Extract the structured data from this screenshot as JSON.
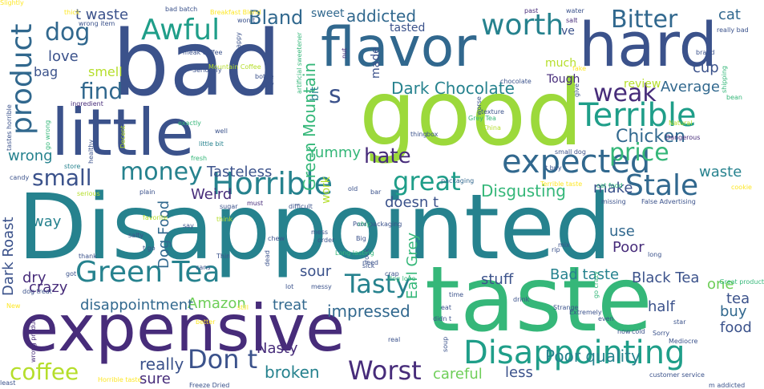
{
  "palette": [
    "#440154",
    "#472c7a",
    "#3b528b",
    "#31688e",
    "#26828e",
    "#1f9e89",
    "#35b779",
    "#6ece58",
    "#b5de2b",
    "#fde725"
  ],
  "words": [
    {
      "text": "Disappointed",
      "color": "#26828e"
    },
    {
      "text": "taste",
      "color": "#35b779"
    },
    {
      "text": "bad",
      "color": "#3b528b"
    },
    {
      "text": "good",
      "color": "#9cd93b"
    },
    {
      "text": "expensive",
      "color": "#472c7a"
    },
    {
      "text": "little",
      "color": "#3b528b"
    },
    {
      "text": "hard",
      "color": "#3b528b"
    },
    {
      "text": "flavor",
      "color": "#31688e"
    },
    {
      "text": "Disappointing",
      "color": "#1f9e89"
    },
    {
      "text": "Terrible",
      "color": "#1f9e89"
    },
    {
      "text": "expected",
      "color": "#31688e"
    },
    {
      "text": "Horrible",
      "color": "#26828e"
    },
    {
      "text": "Green Tea",
      "color": "#26828e"
    },
    {
      "text": "product",
      "color": "#31688e"
    },
    {
      "text": "Awful",
      "color": "#1f9e89"
    },
    {
      "text": "worth",
      "color": "#26828e"
    },
    {
      "text": "Stale",
      "color": "#31688e"
    },
    {
      "text": "Worst",
      "color": "#472c7a"
    },
    {
      "text": "Tasty",
      "color": "#26828e"
    },
    {
      "text": "Don t",
      "color": "#3b528b"
    },
    {
      "text": "great",
      "color": "#1f9e89"
    },
    {
      "text": "dog",
      "color": "#31688e"
    },
    {
      "text": "Bitter",
      "color": "#31688e"
    },
    {
      "text": "money",
      "color": "#26828e"
    },
    {
      "text": "weak",
      "color": "#472c7a"
    },
    {
      "text": "price",
      "color": "#35b779"
    },
    {
      "text": "small",
      "color": "#3b528b"
    },
    {
      "text": "find",
      "color": "#31688e"
    },
    {
      "text": "s",
      "color": "#3b528b"
    },
    {
      "text": "coffee",
      "color": "#b5de2b"
    },
    {
      "text": "hate",
      "color": "#472c7a"
    },
    {
      "text": "Bland",
      "color": "#31688e"
    },
    {
      "text": "Chicken",
      "color": "#31688e"
    },
    {
      "text": "Dark Chocolate",
      "color": "#26828e"
    },
    {
      "text": "Green Mountain",
      "color": "#35b779"
    },
    {
      "text": "Disgusting",
      "color": "#35b779"
    },
    {
      "text": "Poor quality",
      "color": "#26828e"
    },
    {
      "text": "broken",
      "color": "#26828e"
    },
    {
      "text": "careful",
      "color": "#6ece58"
    },
    {
      "text": "really",
      "color": "#3b528b"
    },
    {
      "text": "Nasty",
      "color": "#472c7a"
    },
    {
      "text": "sure",
      "color": "#472c7a"
    },
    {
      "text": "Earl Grey",
      "color": "#35b779"
    },
    {
      "text": "impressed",
      "color": "#31688e"
    },
    {
      "text": "Bad taste",
      "color": "#26828e"
    },
    {
      "text": "Black Tea",
      "color": "#3b528b"
    },
    {
      "text": "addicted",
      "color": "#31688e"
    },
    {
      "text": "cat",
      "color": "#31688e"
    },
    {
      "text": "cup",
      "color": "#3b528b"
    },
    {
      "text": "waste",
      "color": "#26828e"
    },
    {
      "text": "Average",
      "color": "#31688e"
    },
    {
      "text": "Tasteless",
      "color": "#3b528b"
    },
    {
      "text": "Weird",
      "color": "#472c7a"
    },
    {
      "text": "Yummy",
      "color": "#35b779"
    },
    {
      "text": "make",
      "color": "#3b528b"
    },
    {
      "text": "doesn t",
      "color": "#3b528b"
    },
    {
      "text": "stuff",
      "color": "#3b528b"
    },
    {
      "text": "one",
      "color": "#6ece58"
    },
    {
      "text": "tea",
      "color": "#3b528b"
    },
    {
      "text": "buy",
      "color": "#31688e"
    },
    {
      "text": "half",
      "color": "#3b528b"
    },
    {
      "text": "food",
      "color": "#3b528b"
    },
    {
      "text": "Poor",
      "color": "#472c7a"
    },
    {
      "text": "use",
      "color": "#31688e"
    },
    {
      "text": "less",
      "color": "#3b528b"
    },
    {
      "text": "treat",
      "color": "#31688e"
    },
    {
      "text": "sour",
      "color": "#3b528b"
    },
    {
      "text": "crazy",
      "color": "#472c7a"
    },
    {
      "text": "dry",
      "color": "#472c7a"
    },
    {
      "text": "Amazon",
      "color": "#6ece58"
    },
    {
      "text": "disappointment",
      "color": "#31688e"
    },
    {
      "text": "way",
      "color": "#26828e"
    },
    {
      "text": "Dog Food",
      "color": "#31688e"
    },
    {
      "text": "Dark Roast",
      "color": "#3b528b"
    },
    {
      "text": "wrong",
      "color": "#26828e"
    },
    {
      "text": "love",
      "color": "#3b528b"
    },
    {
      "text": "bag",
      "color": "#3b528b"
    },
    {
      "text": "smell",
      "color": "#b5de2b"
    },
    {
      "text": "t waste",
      "color": "#3b528b"
    },
    {
      "text": "tasted",
      "color": "#3b528b"
    },
    {
      "text": "made",
      "color": "#3b528b"
    },
    {
      "text": "ve",
      "color": "#3b528b"
    },
    {
      "text": "much",
      "color": "#b5de2b"
    },
    {
      "text": "Tough",
      "color": "#472c7a"
    },
    {
      "text": "review",
      "color": "#b5de2b"
    },
    {
      "text": "bit",
      "color": "#26828e"
    },
    {
      "text": "work",
      "color": "#b5de2b"
    },
    {
      "text": "sweet",
      "color": "#31688e"
    },
    {
      "text": "Mountain Coffee",
      "color": "#b5de2b"
    },
    {
      "text": "artificial sweetener",
      "color": "#35b779"
    },
    {
      "text": "Seriously",
      "color": "#3b528b"
    },
    {
      "text": "chocolate",
      "color": "#3b528b"
    },
    {
      "text": "worse",
      "color": "#3b528b"
    },
    {
      "text": "Grey Tea",
      "color": "#35b779"
    },
    {
      "text": "texture",
      "color": "#3b528b"
    },
    {
      "text": "China",
      "color": "#b5de2b"
    },
    {
      "text": "thing",
      "color": "#3b528b"
    },
    {
      "text": "box",
      "color": "#3b528b"
    },
    {
      "text": "packaging",
      "color": "#31688e"
    },
    {
      "text": "Terrible taste",
      "color": "#fde725"
    },
    {
      "text": "cat food",
      "color": "#35b779"
    },
    {
      "text": "small dog",
      "color": "#3b528b"
    },
    {
      "text": "missing",
      "color": "#3b528b"
    },
    {
      "text": "False Advertising",
      "color": "#3b528b"
    },
    {
      "text": "Dangerous",
      "color": "#472c7a"
    },
    {
      "text": "Natural",
      "color": "#b5de2b"
    },
    {
      "text": "cookie",
      "color": "#fde725"
    },
    {
      "text": "bean",
      "color": "#35b779"
    },
    {
      "text": "shipping",
      "color": "#35b779"
    },
    {
      "text": "brand",
      "color": "#3b528b"
    },
    {
      "text": "really bad",
      "color": "#3b528b"
    },
    {
      "text": "water",
      "color": "#3b528b"
    },
    {
      "text": "salt",
      "color": "#472c7a"
    },
    {
      "text": "past",
      "color": "#472c7a"
    },
    {
      "text": "Breakfast Blend",
      "color": "#fde725"
    },
    {
      "text": "bad batch",
      "color": "#3b528b"
    },
    {
      "text": "thick",
      "color": "#fde725"
    },
    {
      "text": "wrong item",
      "color": "#3b528b"
    },
    {
      "text": "won t",
      "color": "#3b528b"
    },
    {
      "text": "meak coffee",
      "color": "#3b528b"
    },
    {
      "text": "happy",
      "color": "#3b528b"
    },
    {
      "text": "ingredient",
      "color": "#472c7a"
    },
    {
      "text": "exactly",
      "color": "#35b779"
    },
    {
      "text": "healthy",
      "color": "#3b528b"
    },
    {
      "text": "Decent",
      "color": "#b5de2b"
    },
    {
      "text": "tastes horrible",
      "color": "#3b528b"
    },
    {
      "text": "go wrong",
      "color": "#35b779"
    },
    {
      "text": "little bit",
      "color": "#26828e"
    },
    {
      "text": "fresh",
      "color": "#35b779"
    },
    {
      "text": "candy",
      "color": "#3b528b"
    },
    {
      "text": "store",
      "color": "#26828e"
    },
    {
      "text": "serious",
      "color": "#b5de2b"
    },
    {
      "text": "plain",
      "color": "#3b528b"
    },
    {
      "text": "sugar",
      "color": "#3b528b"
    },
    {
      "text": "think",
      "color": "#b5de2b"
    },
    {
      "text": "must",
      "color": "#472c7a"
    },
    {
      "text": "difficult",
      "color": "#3b528b"
    },
    {
      "text": "favorite",
      "color": "#b5de2b"
    },
    {
      "text": "say",
      "color": "#3b528b"
    },
    {
      "text": "Poor packaging",
      "color": "#3b528b"
    },
    {
      "text": "Big",
      "color": "#3b528b"
    },
    {
      "text": "chip",
      "color": "#35b779"
    },
    {
      "text": "mess",
      "color": "#3b528b"
    },
    {
      "text": "salty",
      "color": "#3b528b"
    },
    {
      "text": "t go",
      "color": "#3b528b"
    },
    {
      "text": "chew",
      "color": "#3b528b"
    },
    {
      "text": "order",
      "color": "#3b528b"
    },
    {
      "text": "rock",
      "color": "#3b528b"
    },
    {
      "text": "need",
      "color": "#3b528b"
    },
    {
      "text": "Long lasting",
      "color": "#35b779"
    },
    {
      "text": "sick",
      "color": "#3b528b"
    },
    {
      "text": "rip",
      "color": "#3b528b"
    },
    {
      "text": "mix",
      "color": "#3b528b"
    },
    {
      "text": "go crazy",
      "color": "#35b779"
    },
    {
      "text": "long",
      "color": "#3b528b"
    },
    {
      "text": "Great product",
      "color": "#35b779"
    },
    {
      "text": "thank",
      "color": "#3b528b"
    },
    {
      "text": "got",
      "color": "#3b528b"
    },
    {
      "text": "Thin",
      "color": "#3b528b"
    },
    {
      "text": "cans",
      "color": "#3b528b"
    },
    {
      "text": "dead",
      "color": "#3b528b"
    },
    {
      "text": "crap",
      "color": "#3b528b"
    },
    {
      "text": "dog love",
      "color": "#35b779"
    },
    {
      "text": "lot",
      "color": "#3b528b"
    },
    {
      "text": "messy",
      "color": "#3b528b"
    },
    {
      "text": "still",
      "color": "#fde725"
    },
    {
      "text": "time",
      "color": "#3b528b"
    },
    {
      "text": "eat",
      "color": "#3b528b"
    },
    {
      "text": "didn t",
      "color": "#3b528b"
    },
    {
      "text": "drink",
      "color": "#3b528b"
    },
    {
      "text": "Strange",
      "color": "#3b528b"
    },
    {
      "text": "Extremely",
      "color": "#3b528b"
    },
    {
      "text": "even",
      "color": "#3b528b"
    },
    {
      "text": "now",
      "color": "#3b528b"
    },
    {
      "text": "cold",
      "color": "#3b528b"
    },
    {
      "text": "Sorry",
      "color": "#3b528b"
    },
    {
      "text": "star",
      "color": "#3b528b"
    },
    {
      "text": "Mediocre",
      "color": "#3b528b"
    },
    {
      "text": "dog treat",
      "color": "#3b528b"
    },
    {
      "text": "New",
      "color": "#fde725"
    },
    {
      "text": "wrong product",
      "color": "#472c7a"
    },
    {
      "text": "better",
      "color": "#fde725"
    },
    {
      "text": "real",
      "color": "#3b528b"
    },
    {
      "text": "soup",
      "color": "#3b528b"
    },
    {
      "text": "least",
      "color": "#3b528b"
    },
    {
      "text": "Horrible taste",
      "color": "#fde725"
    },
    {
      "text": "Freeze Dried",
      "color": "#3b528b"
    },
    {
      "text": "customer service",
      "color": "#3b528b"
    },
    {
      "text": "m addicted",
      "color": "#3b528b"
    },
    {
      "text": "bottle",
      "color": "#3b528b"
    },
    {
      "text": "Try",
      "color": "#3b528b"
    },
    {
      "text": "nut",
      "color": "#472c7a"
    },
    {
      "text": "fake",
      "color": "#fde725"
    },
    {
      "text": "give",
      "color": "#3b528b"
    },
    {
      "text": "t buy",
      "color": "#3b528b"
    },
    {
      "text": "old",
      "color": "#3b528b"
    },
    {
      "text": "bar",
      "color": "#3b528b"
    },
    {
      "text": "well",
      "color": "#3b528b"
    },
    {
      "text": "Slightly",
      "color": "#fde725"
    }
  ]
}
